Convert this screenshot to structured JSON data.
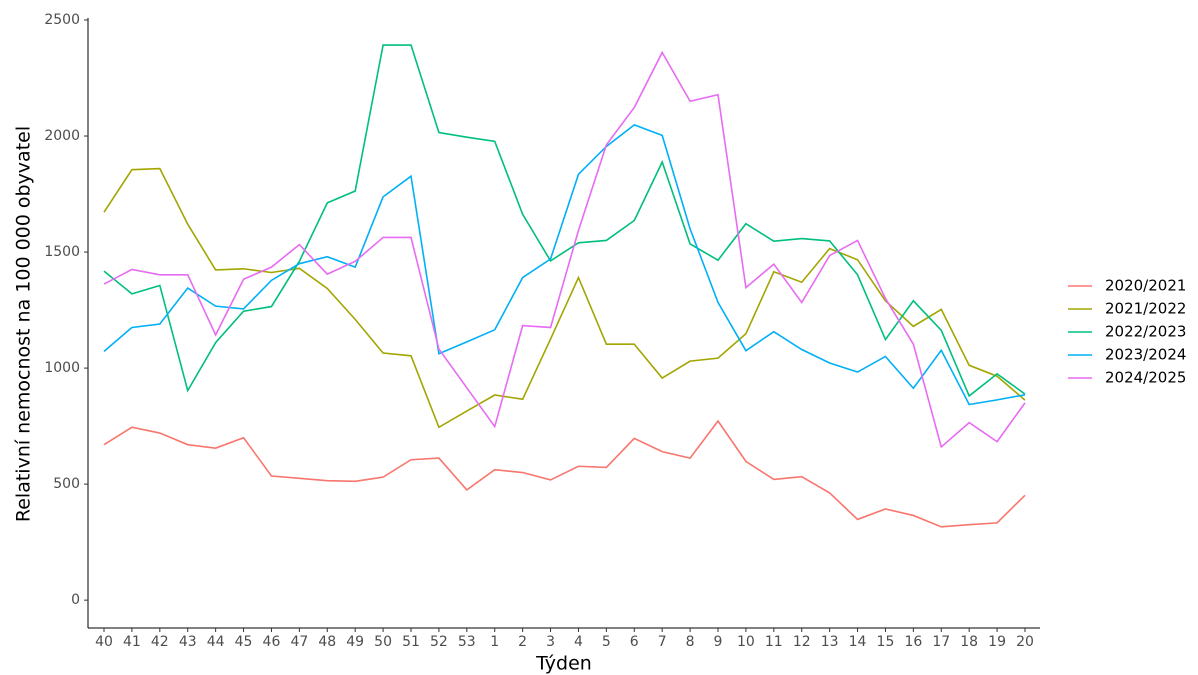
{
  "chart_data": {
    "type": "line",
    "x_label": "Týden",
    "y_label": "Relativní nemocnost na 100 000 obyvatel",
    "categories": [
      "40",
      "41",
      "42",
      "43",
      "44",
      "45",
      "46",
      "47",
      "48",
      "49",
      "50",
      "51",
      "52",
      "53",
      "1",
      "2",
      "3",
      "4",
      "5",
      "6",
      "7",
      "8",
      "9",
      "10",
      "11",
      "12",
      "13",
      "14",
      "15",
      "16",
      "17",
      "18",
      "19",
      "20"
    ],
    "series": [
      {
        "name": "2020/2021",
        "color": "#F8766D",
        "values": [
          670,
          745,
          720,
          670,
          655,
          700,
          535,
          525,
          515,
          512,
          530,
          605,
          612,
          475,
          562,
          550,
          518,
          577,
          572,
          697,
          640,
          612,
          772,
          598,
          520,
          532,
          462,
          348,
          393,
          365,
          316,
          325,
          333,
          452
        ]
      },
      {
        "name": "2021/2022",
        "color": "#A3A500",
        "values": [
          1672,
          1855,
          1860,
          1620,
          1423,
          1428,
          1412,
          1430,
          1343,
          1210,
          1065,
          1053,
          745,
          815,
          884,
          866,
          1125,
          1390,
          1103,
          1103,
          957,
          1030,
          1043,
          1148,
          1415,
          1370,
          1515,
          1467,
          1290,
          1180,
          1253,
          1012,
          965,
          862
        ]
      },
      {
        "name": "2022/2023",
        "color": "#00BF7D",
        "values": [
          1418,
          1320,
          1356,
          903,
          1110,
          1245,
          1265,
          1460,
          1712,
          1763,
          2392,
          2392,
          2015,
          1995,
          1977,
          1663,
          1462,
          1540,
          1550,
          1636,
          1888,
          1535,
          1465,
          1622,
          1547,
          1558,
          1548,
          1402,
          1123,
          1290,
          1163,
          880,
          975,
          888
        ]
      },
      {
        "name": "2023/2024",
        "color": "#00B0F6",
        "values": [
          1072,
          1175,
          1190,
          1345,
          1267,
          1255,
          1378,
          1450,
          1480,
          1435,
          1738,
          1827,
          1062,
          1113,
          1165,
          1390,
          1470,
          1835,
          1955,
          2048,
          2003,
          1600,
          1283,
          1075,
          1157,
          1080,
          1022,
          983,
          1050,
          913,
          1077,
          843,
          863,
          885
        ]
      },
      {
        "name": "2024/2025",
        "color": "#E76BF3",
        "values": [
          1362,
          1425,
          1402,
          1402,
          1143,
          1383,
          1435,
          1532,
          1405,
          1460,
          1563,
          1563,
          1082,
          915,
          748,
          1183,
          1175,
          1593,
          1962,
          2123,
          2360,
          2150,
          2178,
          1347,
          1448,
          1283,
          1485,
          1550,
          1300,
          1103,
          660,
          765,
          683,
          850
        ]
      }
    ],
    "ylim": [
      -120,
      2500
    ],
    "yticks": [
      0,
      500,
      1000,
      1500,
      2000,
      2500
    ],
    "grid": false,
    "legend": "right"
  }
}
